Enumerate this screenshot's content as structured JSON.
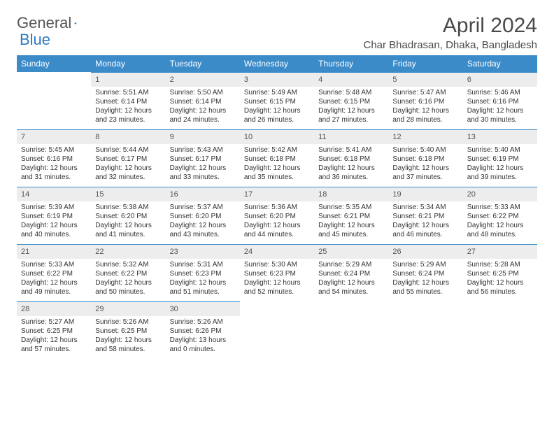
{
  "logo": {
    "text1": "General",
    "text2": "Blue"
  },
  "title": "April 2024",
  "location": "Char Bhadrasan, Dhaka, Bangladesh",
  "colors": {
    "header_bg": "#3b8bc9",
    "header_text": "#ffffff",
    "daynum_bg": "#ededed",
    "row_divider": "#3b8bc9",
    "body_text": "#333333",
    "title_text": "#4a4a4a"
  },
  "weekdays": [
    "Sunday",
    "Monday",
    "Tuesday",
    "Wednesday",
    "Thursday",
    "Friday",
    "Saturday"
  ],
  "weeks": [
    [
      {
        "n": "",
        "sr": "",
        "ss": "",
        "dl": ""
      },
      {
        "n": "1",
        "sr": "Sunrise: 5:51 AM",
        "ss": "Sunset: 6:14 PM",
        "dl": "Daylight: 12 hours and 23 minutes."
      },
      {
        "n": "2",
        "sr": "Sunrise: 5:50 AM",
        "ss": "Sunset: 6:14 PM",
        "dl": "Daylight: 12 hours and 24 minutes."
      },
      {
        "n": "3",
        "sr": "Sunrise: 5:49 AM",
        "ss": "Sunset: 6:15 PM",
        "dl": "Daylight: 12 hours and 26 minutes."
      },
      {
        "n": "4",
        "sr": "Sunrise: 5:48 AM",
        "ss": "Sunset: 6:15 PM",
        "dl": "Daylight: 12 hours and 27 minutes."
      },
      {
        "n": "5",
        "sr": "Sunrise: 5:47 AM",
        "ss": "Sunset: 6:16 PM",
        "dl": "Daylight: 12 hours and 28 minutes."
      },
      {
        "n": "6",
        "sr": "Sunrise: 5:46 AM",
        "ss": "Sunset: 6:16 PM",
        "dl": "Daylight: 12 hours and 30 minutes."
      }
    ],
    [
      {
        "n": "7",
        "sr": "Sunrise: 5:45 AM",
        "ss": "Sunset: 6:16 PM",
        "dl": "Daylight: 12 hours and 31 minutes."
      },
      {
        "n": "8",
        "sr": "Sunrise: 5:44 AM",
        "ss": "Sunset: 6:17 PM",
        "dl": "Daylight: 12 hours and 32 minutes."
      },
      {
        "n": "9",
        "sr": "Sunrise: 5:43 AM",
        "ss": "Sunset: 6:17 PM",
        "dl": "Daylight: 12 hours and 33 minutes."
      },
      {
        "n": "10",
        "sr": "Sunrise: 5:42 AM",
        "ss": "Sunset: 6:18 PM",
        "dl": "Daylight: 12 hours and 35 minutes."
      },
      {
        "n": "11",
        "sr": "Sunrise: 5:41 AM",
        "ss": "Sunset: 6:18 PM",
        "dl": "Daylight: 12 hours and 36 minutes."
      },
      {
        "n": "12",
        "sr": "Sunrise: 5:40 AM",
        "ss": "Sunset: 6:18 PM",
        "dl": "Daylight: 12 hours and 37 minutes."
      },
      {
        "n": "13",
        "sr": "Sunrise: 5:40 AM",
        "ss": "Sunset: 6:19 PM",
        "dl": "Daylight: 12 hours and 39 minutes."
      }
    ],
    [
      {
        "n": "14",
        "sr": "Sunrise: 5:39 AM",
        "ss": "Sunset: 6:19 PM",
        "dl": "Daylight: 12 hours and 40 minutes."
      },
      {
        "n": "15",
        "sr": "Sunrise: 5:38 AM",
        "ss": "Sunset: 6:20 PM",
        "dl": "Daylight: 12 hours and 41 minutes."
      },
      {
        "n": "16",
        "sr": "Sunrise: 5:37 AM",
        "ss": "Sunset: 6:20 PM",
        "dl": "Daylight: 12 hours and 43 minutes."
      },
      {
        "n": "17",
        "sr": "Sunrise: 5:36 AM",
        "ss": "Sunset: 6:20 PM",
        "dl": "Daylight: 12 hours and 44 minutes."
      },
      {
        "n": "18",
        "sr": "Sunrise: 5:35 AM",
        "ss": "Sunset: 6:21 PM",
        "dl": "Daylight: 12 hours and 45 minutes."
      },
      {
        "n": "19",
        "sr": "Sunrise: 5:34 AM",
        "ss": "Sunset: 6:21 PM",
        "dl": "Daylight: 12 hours and 46 minutes."
      },
      {
        "n": "20",
        "sr": "Sunrise: 5:33 AM",
        "ss": "Sunset: 6:22 PM",
        "dl": "Daylight: 12 hours and 48 minutes."
      }
    ],
    [
      {
        "n": "21",
        "sr": "Sunrise: 5:33 AM",
        "ss": "Sunset: 6:22 PM",
        "dl": "Daylight: 12 hours and 49 minutes."
      },
      {
        "n": "22",
        "sr": "Sunrise: 5:32 AM",
        "ss": "Sunset: 6:22 PM",
        "dl": "Daylight: 12 hours and 50 minutes."
      },
      {
        "n": "23",
        "sr": "Sunrise: 5:31 AM",
        "ss": "Sunset: 6:23 PM",
        "dl": "Daylight: 12 hours and 51 minutes."
      },
      {
        "n": "24",
        "sr": "Sunrise: 5:30 AM",
        "ss": "Sunset: 6:23 PM",
        "dl": "Daylight: 12 hours and 52 minutes."
      },
      {
        "n": "25",
        "sr": "Sunrise: 5:29 AM",
        "ss": "Sunset: 6:24 PM",
        "dl": "Daylight: 12 hours and 54 minutes."
      },
      {
        "n": "26",
        "sr": "Sunrise: 5:29 AM",
        "ss": "Sunset: 6:24 PM",
        "dl": "Daylight: 12 hours and 55 minutes."
      },
      {
        "n": "27",
        "sr": "Sunrise: 5:28 AM",
        "ss": "Sunset: 6:25 PM",
        "dl": "Daylight: 12 hours and 56 minutes."
      }
    ],
    [
      {
        "n": "28",
        "sr": "Sunrise: 5:27 AM",
        "ss": "Sunset: 6:25 PM",
        "dl": "Daylight: 12 hours and 57 minutes."
      },
      {
        "n": "29",
        "sr": "Sunrise: 5:26 AM",
        "ss": "Sunset: 6:25 PM",
        "dl": "Daylight: 12 hours and 58 minutes."
      },
      {
        "n": "30",
        "sr": "Sunrise: 5:26 AM",
        "ss": "Sunset: 6:26 PM",
        "dl": "Daylight: 13 hours and 0 minutes."
      },
      {
        "n": "",
        "sr": "",
        "ss": "",
        "dl": ""
      },
      {
        "n": "",
        "sr": "",
        "ss": "",
        "dl": ""
      },
      {
        "n": "",
        "sr": "",
        "ss": "",
        "dl": ""
      },
      {
        "n": "",
        "sr": "",
        "ss": "",
        "dl": ""
      }
    ]
  ]
}
